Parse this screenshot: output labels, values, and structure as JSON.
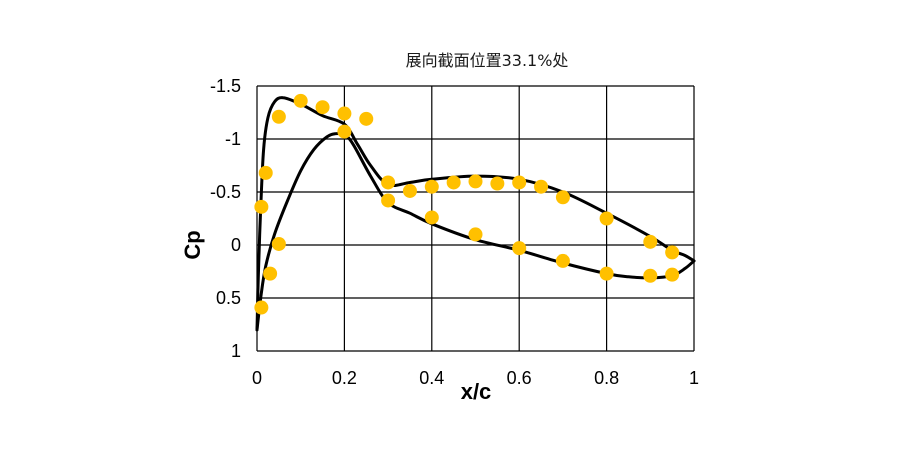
{
  "chart_data": {
    "type": "scatter",
    "title": "展向截面位置33.1%处",
    "xlabel": "x/c",
    "ylabel": "Cp",
    "xlim": [
      0,
      1
    ],
    "ylim": [
      -1.5,
      1
    ],
    "y_inverted": true,
    "grid": true,
    "legend": "none",
    "xticks": [
      "0",
      "0.2",
      "0.4",
      "0.6",
      "0.8",
      "1"
    ],
    "yticks": [
      "-1.5",
      "-1",
      "-0.5",
      "0",
      "0.5",
      "1"
    ],
    "series": [
      {
        "style": "markers",
        "color": "#FFC000",
        "x": [
          0.01,
          0.01,
          0.02,
          0.05,
          0.1,
          0.15,
          0.2,
          0.25,
          0.2,
          0.3,
          0.35,
          0.4,
          0.45,
          0.5,
          0.55,
          0.6,
          0.65,
          0.7,
          0.8,
          0.9,
          0.95,
          0.3,
          0.4,
          0.5,
          0.6,
          0.7,
          0.8,
          0.9,
          0.95,
          0.05,
          0.03
        ],
        "y": [
          0.59,
          -0.36,
          -0.68,
          -1.21,
          -1.36,
          -1.3,
          -1.24,
          -1.19,
          -1.07,
          -0.59,
          -0.51,
          -0.55,
          -0.59,
          -0.6,
          -0.58,
          -0.59,
          -0.55,
          -0.45,
          -0.25,
          -0.03,
          0.07,
          -0.42,
          -0.26,
          -0.1,
          0.03,
          0.15,
          0.27,
          0.29,
          0.28,
          -0.01,
          0.27
        ]
      },
      {
        "style": "line",
        "color": "#000000",
        "x": [
          0.0,
          0.003,
          0.008,
          0.015,
          0.025,
          0.04,
          0.06,
          0.1,
          0.15,
          0.2,
          0.23,
          0.26,
          0.3,
          0.35,
          0.4,
          0.5,
          0.6,
          0.7,
          0.8,
          0.9,
          0.95,
          0.98,
          1.0
        ],
        "y": [
          0.8,
          0.3,
          -0.3,
          -0.9,
          -1.2,
          -1.35,
          -1.39,
          -1.33,
          -1.22,
          -1.14,
          -0.95,
          -0.75,
          -0.57,
          -0.59,
          -0.62,
          -0.65,
          -0.62,
          -0.5,
          -0.3,
          -0.08,
          0.05,
          0.1,
          0.15
        ]
      },
      {
        "style": "line",
        "color": "#000000",
        "x": [
          0.0,
          0.01,
          0.02,
          0.04,
          0.07,
          0.1,
          0.13,
          0.16,
          0.18,
          0.2,
          0.22,
          0.26,
          0.3,
          0.35,
          0.4,
          0.5,
          0.6,
          0.7,
          0.8,
          0.85,
          0.9,
          0.95,
          0.98,
          1.0
        ],
        "y": [
          0.8,
          0.45,
          0.2,
          -0.1,
          -0.42,
          -0.7,
          -0.9,
          -1.02,
          -1.05,
          -1.04,
          -0.95,
          -0.65,
          -0.4,
          -0.3,
          -0.2,
          -0.05,
          0.05,
          0.17,
          0.27,
          0.3,
          0.31,
          0.29,
          0.22,
          0.15
        ]
      }
    ]
  }
}
